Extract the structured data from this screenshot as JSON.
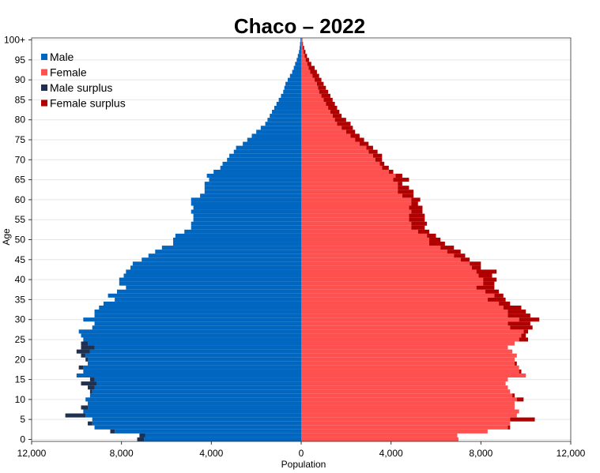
{
  "chart_data": {
    "type": "bar",
    "orientation": "horizontal-pyramid",
    "title": "Chaco – 2022",
    "xlabel": "Population",
    "ylabel": "Age",
    "xlim": [
      -12000,
      12000
    ],
    "ylim": [
      0,
      100
    ],
    "x_ticks": [
      -12000,
      -8000,
      -4000,
      0,
      4000,
      8000,
      12000
    ],
    "x_tick_labels": [
      "12,000",
      "8,000",
      "4,000",
      "0",
      "4,000",
      "8,000",
      "12,000"
    ],
    "y_ticks": [
      0,
      5,
      10,
      15,
      20,
      25,
      30,
      35,
      40,
      45,
      50,
      55,
      60,
      65,
      70,
      75,
      80,
      85,
      90,
      95,
      100
    ],
    "y_tick_labels": [
      "0",
      "5",
      "10",
      "15",
      "20",
      "25",
      "30",
      "35",
      "40",
      "45",
      "50",
      "55",
      "60",
      "65",
      "70",
      "75",
      "80",
      "85",
      "90",
      "95",
      "100+"
    ],
    "grid": true,
    "legend_position": "top-left",
    "colors": {
      "male": "#0066bf",
      "female": "#ff5050",
      "male_surplus": "#1f3050",
      "female_surplus": "#b00000"
    },
    "legend": [
      {
        "name": "Male",
        "color": "#0066bf"
      },
      {
        "name": "Female",
        "color": "#ff5050"
      },
      {
        "name": "Male surplus",
        "color": "#1f3050"
      },
      {
        "name": "Female surplus",
        "color": "#b00000"
      }
    ],
    "ages": [
      0,
      1,
      2,
      3,
      4,
      5,
      6,
      7,
      8,
      9,
      10,
      11,
      12,
      13,
      14,
      15,
      16,
      17,
      18,
      19,
      20,
      21,
      22,
      23,
      24,
      25,
      26,
      27,
      28,
      29,
      30,
      31,
      32,
      33,
      34,
      35,
      36,
      37,
      38,
      39,
      40,
      41,
      42,
      43,
      44,
      45,
      46,
      47,
      48,
      49,
      50,
      51,
      52,
      53,
      54,
      55,
      56,
      57,
      58,
      59,
      60,
      61,
      62,
      63,
      64,
      65,
      66,
      67,
      68,
      69,
      70,
      71,
      72,
      73,
      74,
      75,
      76,
      77,
      78,
      79,
      80,
      81,
      82,
      83,
      84,
      85,
      86,
      87,
      88,
      89,
      90,
      91,
      92,
      93,
      94,
      95,
      96,
      97,
      98,
      99,
      100
    ],
    "series": [
      {
        "name": "Male",
        "values": [
          7300,
          7200,
          8500,
          9200,
          9500,
          9300,
          10500,
          9700,
          9800,
          9500,
          9600,
          9400,
          9400,
          9500,
          9800,
          9400,
          10000,
          9700,
          9900,
          9500,
          9600,
          9800,
          10000,
          9800,
          9800,
          9700,
          9800,
          9900,
          9300,
          9200,
          9700,
          9200,
          9200,
          9000,
          8800,
          8300,
          8600,
          8200,
          7800,
          8100,
          8100,
          7900,
          7800,
          7600,
          7500,
          7100,
          6800,
          6500,
          6200,
          5700,
          5700,
          5600,
          5200,
          4900,
          4900,
          4800,
          4800,
          4900,
          4800,
          4900,
          4900,
          4500,
          4300,
          4300,
          4300,
          4100,
          4200,
          3900,
          3600,
          3500,
          3300,
          3200,
          3000,
          2900,
          2600,
          2400,
          2200,
          2000,
          1800,
          1600,
          1500,
          1400,
          1300,
          1200,
          1100,
          1000,
          900,
          800,
          750,
          700,
          600,
          500,
          400,
          330,
          270,
          200,
          150,
          100,
          70,
          50,
          30
        ]
      },
      {
        "name": "Female",
        "values": [
          7000,
          6950,
          8300,
          9300,
          9300,
          10400,
          9600,
          9700,
          9500,
          9500,
          9900,
          9500,
          9300,
          9200,
          9100,
          9200,
          10000,
          9800,
          9700,
          9600,
          9500,
          9600,
          9400,
          9200,
          9500,
          10100,
          10000,
          10100,
          10300,
          10200,
          10600,
          10200,
          10000,
          9800,
          9300,
          9100,
          9000,
          8800,
          8600,
          8600,
          8700,
          8500,
          8700,
          8000,
          8000,
          7500,
          7300,
          7100,
          6800,
          6400,
          6200,
          6000,
          5700,
          5500,
          5600,
          5500,
          5500,
          5400,
          5400,
          5200,
          5300,
          5000,
          5000,
          4800,
          4500,
          4800,
          4500,
          4100,
          3900,
          3700,
          3600,
          3600,
          3400,
          3200,
          3000,
          2800,
          2600,
          2400,
          2300,
          2200,
          2000,
          1800,
          1700,
          1600,
          1500,
          1400,
          1300,
          1200,
          1100,
          1000,
          900,
          800,
          700,
          600,
          450,
          350,
          260,
          190,
          130,
          80,
          50
        ]
      }
    ]
  }
}
